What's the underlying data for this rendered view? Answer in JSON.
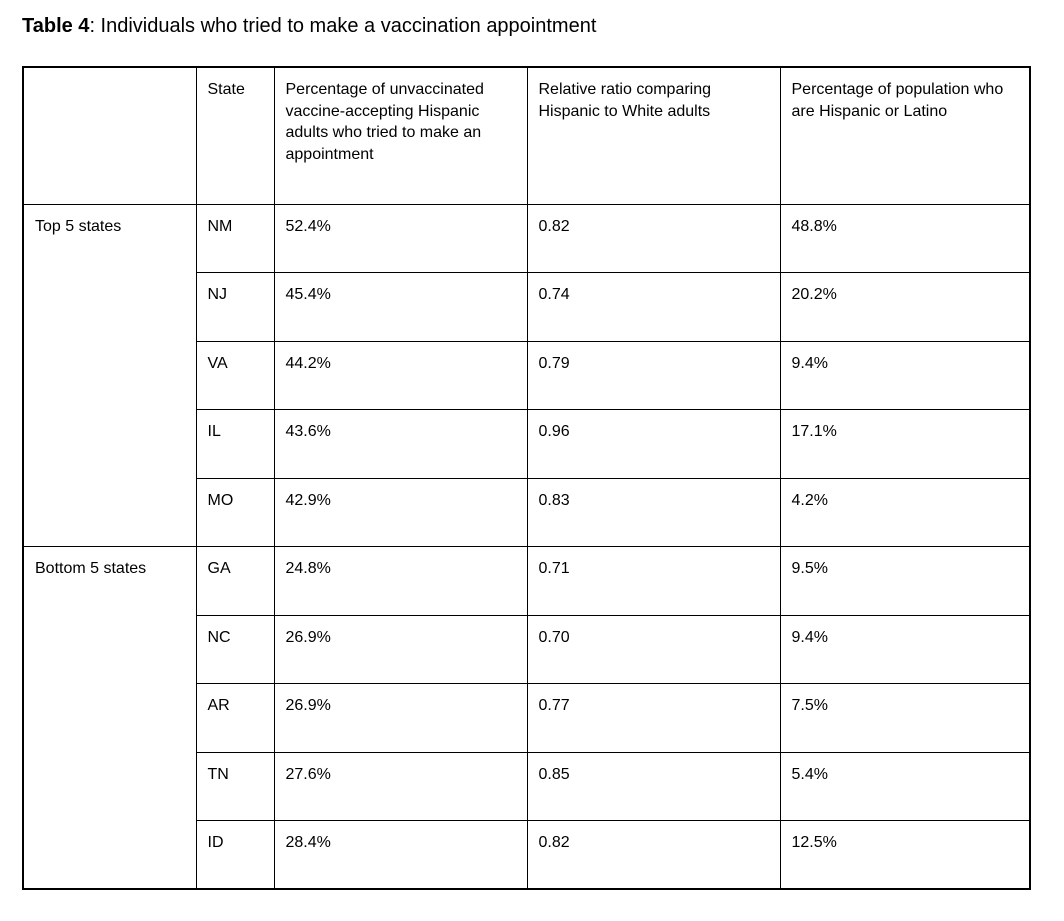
{
  "caption": {
    "label": "Table 4",
    "text": ": Individuals who tried to make a vaccination appointment"
  },
  "table": {
    "headers": {
      "group": "",
      "state": "State",
      "pct_tried": "Percentage of unvaccinated vaccine-accepting Hispanic adults who tried to make an appointment",
      "ratio": "Relative ratio comparing Hispanic to White adults",
      "pct_hispanic": "Percentage of population who are Hispanic or Latino"
    },
    "groups": [
      {
        "label": "Top 5 states",
        "rows": [
          {
            "state": "NM",
            "pct_tried": "52.4%",
            "ratio": "0.82",
            "pct_hispanic": "48.8%"
          },
          {
            "state": "NJ",
            "pct_tried": "45.4%",
            "ratio": "0.74",
            "pct_hispanic": "20.2%"
          },
          {
            "state": "VA",
            "pct_tried": "44.2%",
            "ratio": "0.79",
            "pct_hispanic": "9.4%"
          },
          {
            "state": "IL",
            "pct_tried": "43.6%",
            "ratio": "0.96",
            "pct_hispanic": "17.1%"
          },
          {
            "state": "MO",
            "pct_tried": "42.9%",
            "ratio": "0.83",
            "pct_hispanic": "4.2%"
          }
        ]
      },
      {
        "label": "Bottom 5 states",
        "rows": [
          {
            "state": "GA",
            "pct_tried": "24.8%",
            "ratio": "0.71",
            "pct_hispanic": "9.5%"
          },
          {
            "state": "NC",
            "pct_tried": "26.9%",
            "ratio": "0.70",
            "pct_hispanic": "9.4%"
          },
          {
            "state": "AR",
            "pct_tried": "26.9%",
            "ratio": "0.77",
            "pct_hispanic": "7.5%"
          },
          {
            "state": "TN",
            "pct_tried": "27.6%",
            "ratio": "0.85",
            "pct_hispanic": "5.4%"
          },
          {
            "state": "ID",
            "pct_tried": "28.4%",
            "ratio": "0.82",
            "pct_hispanic": "12.5%"
          }
        ]
      }
    ]
  }
}
